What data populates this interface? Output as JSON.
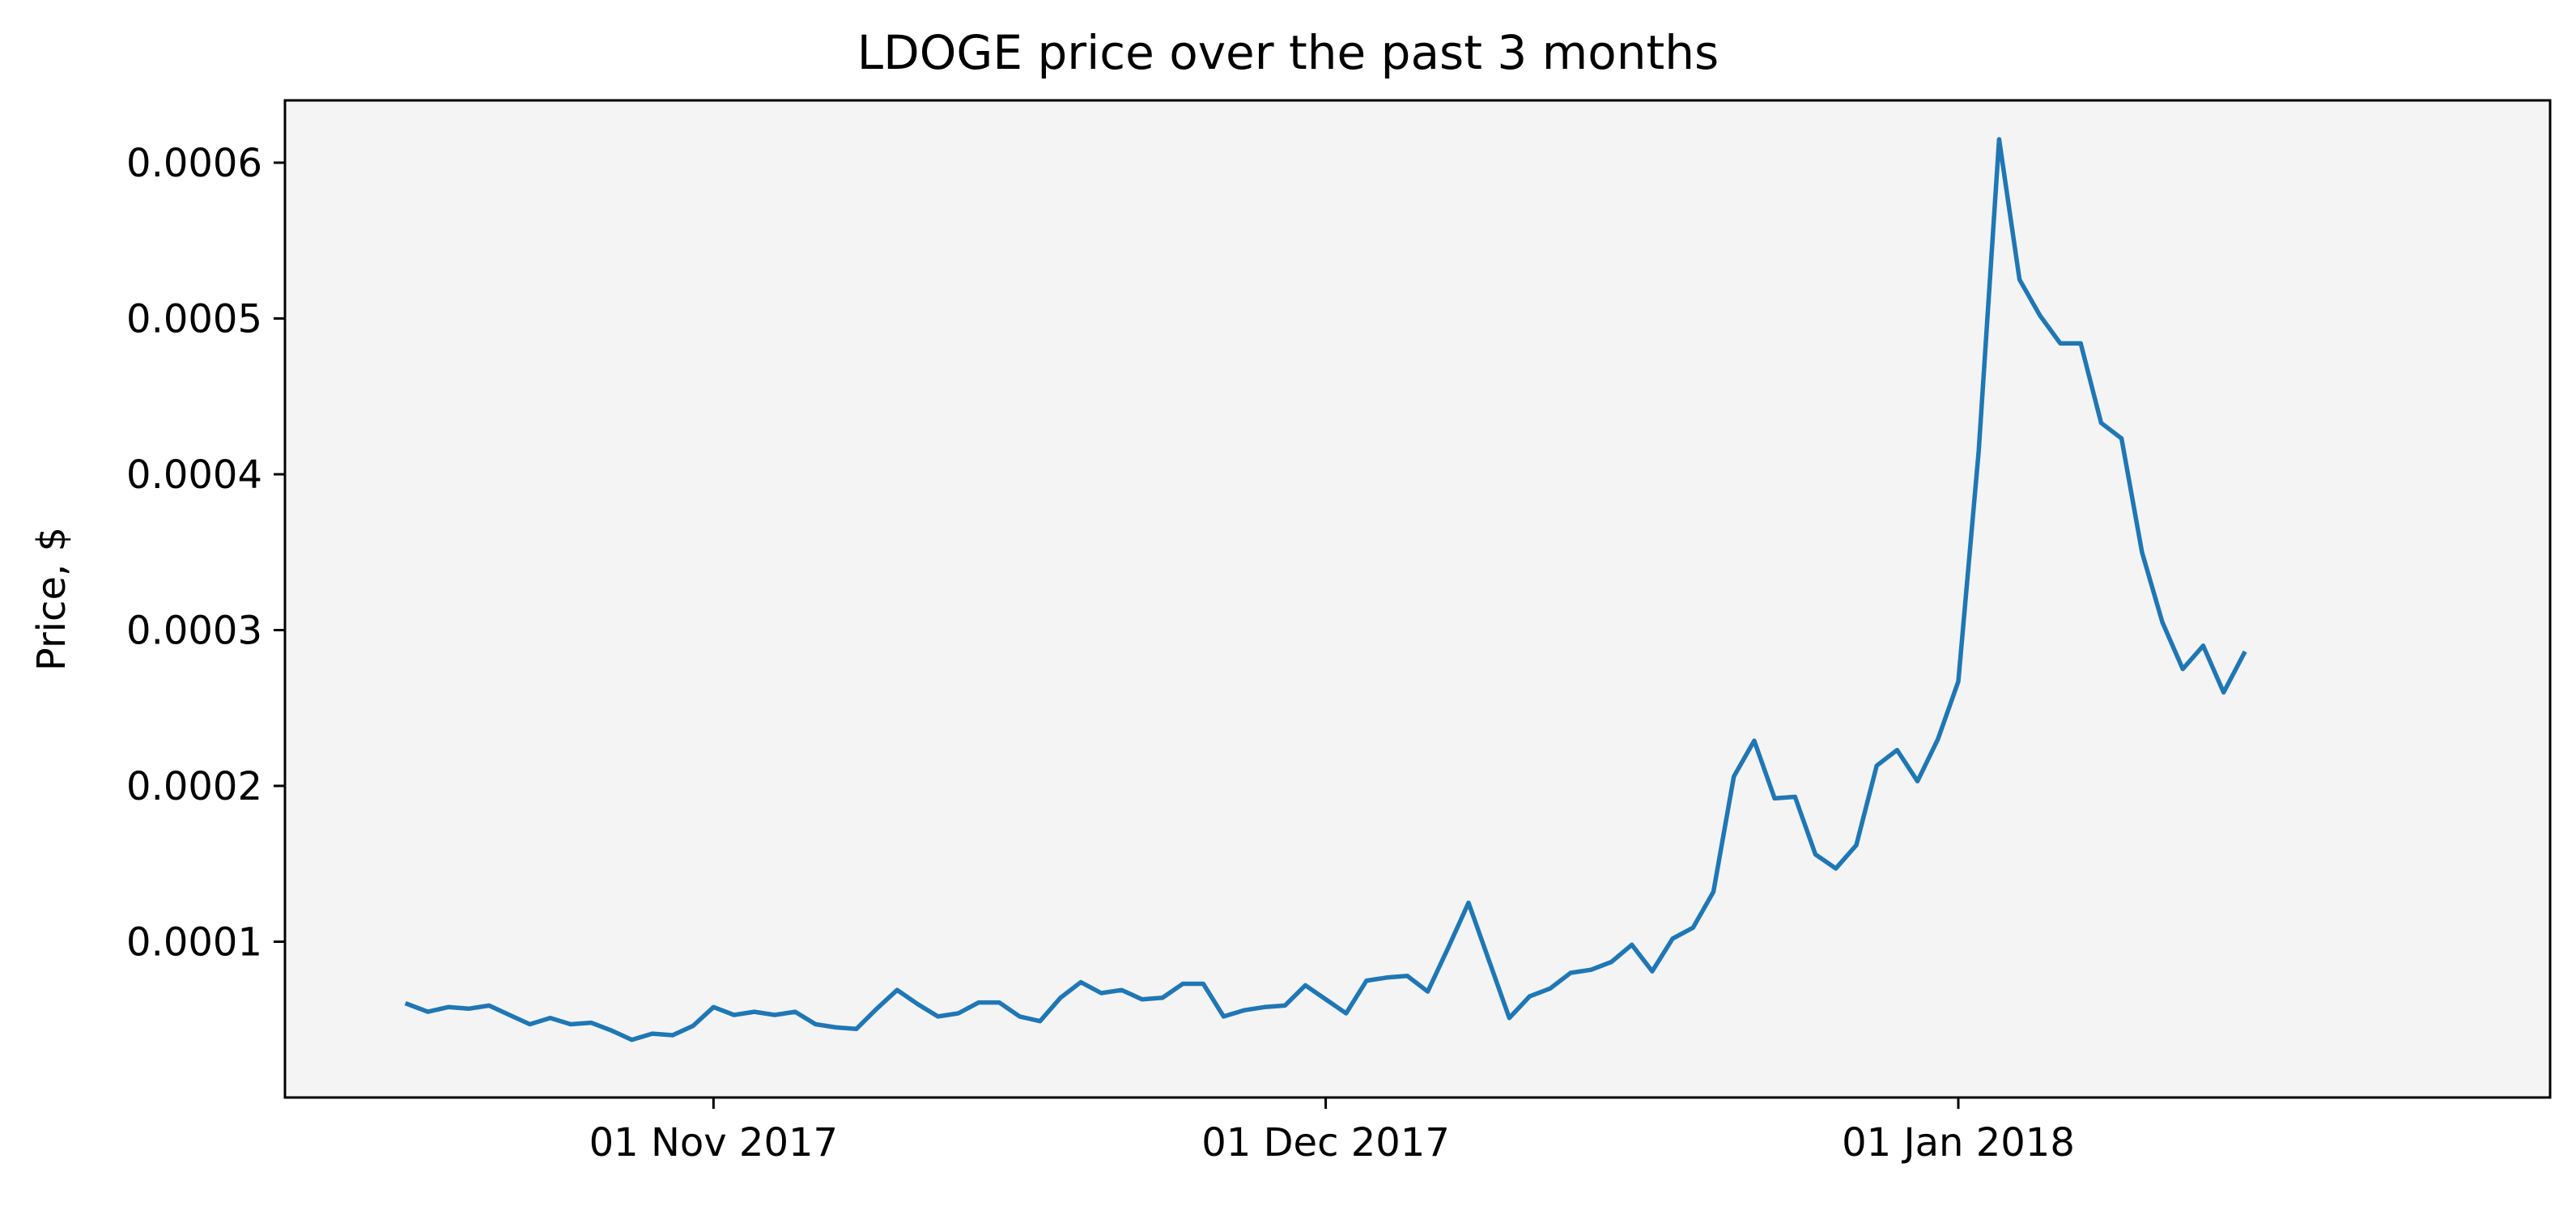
{
  "chart_data": {
    "type": "line",
    "title": "LDOGE price over the past 3 months",
    "xlabel": "",
    "ylabel": "Price, $",
    "x_start": "2017-10-17",
    "xlim": [
      "2017-10-11",
      "2018-01-30"
    ],
    "ylim": [
      0.0,
      0.00064
    ],
    "grid": false,
    "background_color": "#f4f4f5",
    "series_color": "#1f77b4",
    "x_ticks": [
      {
        "date": "2017-11-01",
        "label": "01 Nov 2017"
      },
      {
        "date": "2017-12-01",
        "label": "01 Dec 2017"
      },
      {
        "date": "2018-01-01",
        "label": "01 Jan 2018"
      }
    ],
    "y_ticks": [
      {
        "value": 0.0001,
        "label": "0.0001"
      },
      {
        "value": 0.0002,
        "label": "0.0002"
      },
      {
        "value": 0.0003,
        "label": "0.0003"
      },
      {
        "value": 0.0004,
        "label": "0.0004"
      },
      {
        "value": 0.0005,
        "label": "0.0005"
      },
      {
        "value": 0.0006,
        "label": "0.0006"
      }
    ],
    "series": [
      {
        "values": [
          6e-05,
          5.5e-05,
          5.8e-05,
          5.7e-05,
          5.9e-05,
          5.3e-05,
          4.7e-05,
          5.1e-05,
          4.7e-05,
          4.8e-05,
          4.3e-05,
          3.7e-05,
          4.1e-05,
          4e-05,
          4.6e-05,
          5.8e-05,
          5.3e-05,
          5.5e-05,
          5.3e-05,
          5.5e-05,
          4.7e-05,
          4.5e-05,
          4.4e-05,
          5.7e-05,
          6.9e-05,
          6e-05,
          5.2e-05,
          5.4e-05,
          6.1e-05,
          6.1e-05,
          5.2e-05,
          4.9e-05,
          6.4e-05,
          7.4e-05,
          6.7e-05,
          6.9e-05,
          6.3e-05,
          6.4e-05,
          7.3e-05,
          7.3e-05,
          5.2e-05,
          5.6e-05,
          5.8e-05,
          5.9e-05,
          7.2e-05,
          6.3e-05,
          5.4e-05,
          7.5e-05,
          7.7e-05,
          7.8e-05,
          6.8e-05,
          9.6e-05,
          0.000125,
          8.8e-05,
          5.1e-05,
          6.5e-05,
          7e-05,
          8e-05,
          8.2e-05,
          8.7e-05,
          9.8e-05,
          8.1e-05,
          0.000102,
          0.000109,
          0.000132,
          0.000206,
          0.000229,
          0.000192,
          0.000193,
          0.000156,
          0.000147,
          0.000162,
          0.000213,
          0.000223,
          0.000203,
          0.00023,
          0.000267,
          0.000415,
          0.000615,
          0.000525,
          0.000502,
          0.000484,
          0.000484,
          0.000433,
          0.000423,
          0.00035,
          0.000305,
          0.000275,
          0.00029,
          0.00026,
          0.000285
        ]
      }
    ]
  }
}
